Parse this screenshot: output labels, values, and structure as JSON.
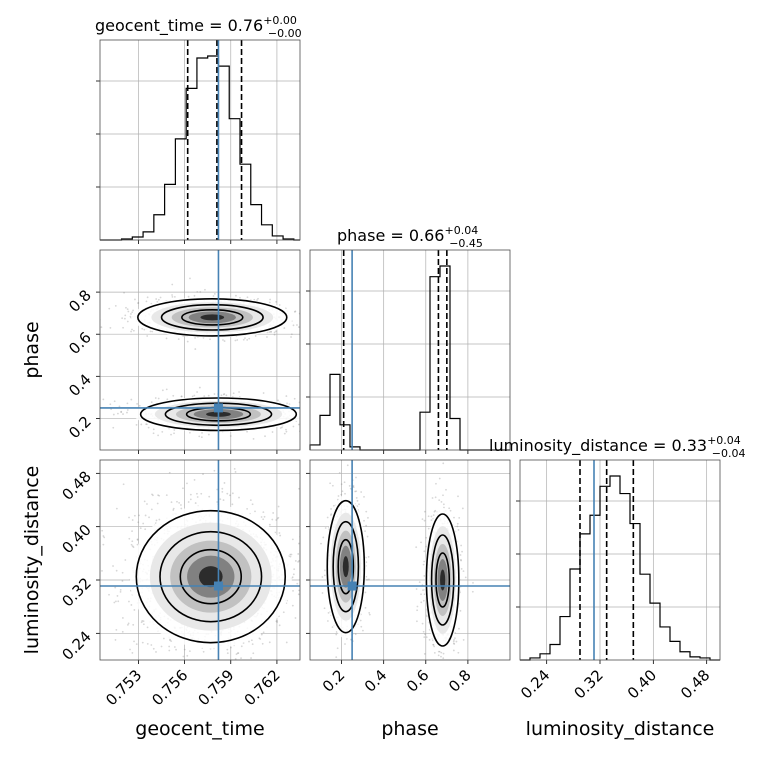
{
  "chart_data": {
    "type": "corner",
    "parameters": [
      "geocent_time",
      "phase",
      "luminosity_distance"
    ],
    "axis_labels": [
      "geocent_time",
      "phase",
      "luminosity_distance"
    ],
    "titles": [
      {
        "parameter": "geocent_time",
        "text": "geocent_time = 0.76",
        "plus": "+0.00",
        "minus": "−0.00"
      },
      {
        "parameter": "phase",
        "text": "phase = 0.66",
        "plus": "+0.04",
        "minus": "−0.45"
      },
      {
        "parameter": "luminosity_distance",
        "text": "luminosity_distance = 0.33",
        "plus": "+0.04",
        "minus": "−0.04"
      }
    ],
    "ranges": {
      "geocent_time": [
        0.7505,
        0.7635
      ],
      "phase": [
        0.05,
        1.0
      ],
      "luminosity_distance": [
        0.2,
        0.5
      ]
    },
    "ticks": {
      "geocent_time": {
        "values": [
          0.753,
          0.756,
          0.759,
          0.762
        ],
        "labels": [
          "0.753",
          "0.756",
          "0.759",
          "0.762"
        ]
      },
      "phase_y": {
        "values": [
          0.2,
          0.4,
          0.6,
          0.8
        ],
        "labels": [
          "0.2",
          "0.4",
          "0.6",
          "0.8"
        ]
      },
      "phase_x": {
        "values": [
          0.2,
          0.4,
          0.6,
          0.8
        ],
        "labels": [
          "0.2",
          "0.4",
          "0.6",
          "0.8"
        ]
      },
      "luminosity_distance": {
        "values": [
          0.24,
          0.32,
          0.4,
          0.48
        ],
        "labels": [
          "0.24",
          "0.32",
          "0.40",
          "0.48"
        ]
      }
    },
    "truths": {
      "geocent_time": 0.7582,
      "phase": 0.25,
      "luminosity_distance": 0.311
    },
    "quantiles": {
      "geocent_time": [
        0.7562,
        0.7581,
        0.7597
      ],
      "phase": [
        0.21,
        0.66,
        0.7
      ],
      "luminosity_distance": [
        0.29,
        0.33,
        0.37
      ]
    },
    "histograms": {
      "geocent_time": {
        "edges": [
          0.7505,
          0.7512,
          0.7519,
          0.7526,
          0.7533,
          0.754,
          0.7547,
          0.7554,
          0.7561,
          0.7568,
          0.7575,
          0.7582,
          0.7589,
          0.7596,
          0.7603,
          0.761,
          0.7617,
          0.7624,
          0.7631,
          0.7635
        ],
        "counts": [
          0,
          0,
          1,
          3,
          8,
          25,
          55,
          100,
          150,
          180,
          182,
          172,
          120,
          75,
          35,
          15,
          4,
          1,
          0
        ]
      },
      "phase": {
        "edges": [
          0.05,
          0.0975,
          0.145,
          0.1925,
          0.24,
          0.2875,
          0.335,
          0.3825,
          0.43,
          0.4775,
          0.525,
          0.5725,
          0.62,
          0.6675,
          0.715,
          0.7625,
          0.81,
          0.8575,
          0.905,
          0.9525,
          1.0
        ],
        "counts": [
          8,
          55,
          120,
          40,
          5,
          0,
          0,
          0,
          0,
          0,
          0,
          60,
          275,
          292,
          50,
          0,
          0,
          0,
          0,
          0
        ]
      },
      "luminosity_distance": {
        "edges": [
          0.2,
          0.215,
          0.23,
          0.245,
          0.26,
          0.275,
          0.29,
          0.305,
          0.32,
          0.335,
          0.35,
          0.365,
          0.38,
          0.395,
          0.41,
          0.425,
          0.44,
          0.455,
          0.47,
          0.485,
          0.5
        ],
        "counts": [
          0,
          2,
          6,
          15,
          42,
          88,
          122,
          140,
          168,
          178,
          161,
          132,
          83,
          55,
          32,
          18,
          8,
          3,
          2,
          0
        ]
      }
    },
    "modes": {
      "geocent_phase": [
        {
          "x": 0.7578,
          "y": 0.68,
          "sx": 0.0022,
          "sy": 0.04
        },
        {
          "x": 0.7582,
          "y": 0.22,
          "sx": 0.0023,
          "sy": 0.035
        }
      ],
      "geocent_distance": [
        {
          "x": 0.7577,
          "y": 0.325,
          "sx": 0.0022,
          "sy": 0.045
        }
      ],
      "phase_distance": [
        {
          "x": 0.22,
          "y": 0.34,
          "sx": 0.04,
          "sy": 0.045
        },
        {
          "x": 0.68,
          "y": 0.32,
          "sx": 0.035,
          "sy": 0.045
        }
      ]
    },
    "colors": {
      "truth": "#4682b4",
      "hist": "#000000",
      "grid": "#b0b0b0",
      "scatter": "#8c8c8c"
    },
    "grid": true
  }
}
